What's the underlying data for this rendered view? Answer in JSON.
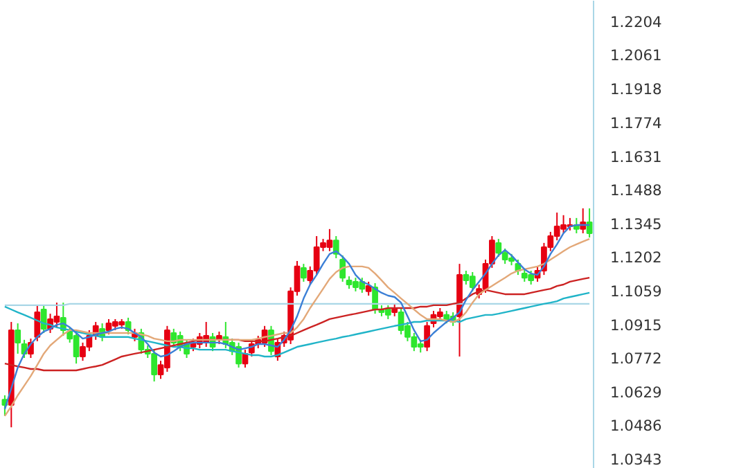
{
  "chart_data": [
    {
      "type": "candlestick",
      "categories": [
        null,
        null,
        null,
        null,
        null,
        null,
        null,
        null,
        null,
        null,
        null,
        null,
        null,
        null,
        null,
        null,
        null,
        null,
        null,
        null,
        null,
        null,
        null,
        null,
        null,
        null,
        null,
        null,
        null,
        null,
        null,
        null,
        null,
        null,
        null,
        null,
        null,
        null,
        null,
        null,
        null,
        null,
        null,
        null,
        null,
        null,
        null,
        null,
        null,
        null,
        null,
        null,
        null,
        null,
        null,
        null,
        null,
        null,
        null,
        null,
        null,
        null,
        null,
        null,
        null,
        null,
        null,
        null,
        null,
        null,
        null,
        null,
        null,
        null,
        null,
        null,
        null,
        null,
        null,
        null,
        null,
        null,
        null,
        null,
        null,
        null,
        null,
        null,
        null,
        null,
        null
      ],
      "ohlc": [
        [
          1.0596,
          1.0614,
          1.0526,
          1.0573
        ],
        [
          1.0573,
          1.0926,
          1.0478,
          1.0891
        ],
        [
          1.0891,
          1.092,
          1.0791,
          1.0838
        ],
        [
          1.0832,
          1.085,
          1.0773,
          1.0791
        ],
        [
          1.0791,
          1.0855,
          1.0773,
          1.0838
        ],
        [
          1.0862,
          1.0997,
          1.0844,
          1.0967
        ],
        [
          1.0979,
          1.0997,
          1.0879,
          1.0897
        ],
        [
          1.0897,
          1.0961,
          1.0879,
          1.0938
        ],
        [
          1.0926,
          1.1008,
          1.0903,
          1.095
        ],
        [
          1.0944,
          1.1008,
          1.0867,
          1.0891
        ],
        [
          1.0885,
          1.0903,
          1.0838,
          1.0855
        ],
        [
          1.0867,
          1.0879,
          1.0749,
          1.0779
        ],
        [
          1.0779,
          1.0838,
          1.0761,
          1.082
        ],
        [
          1.082,
          1.0891,
          1.0802,
          1.0867
        ],
        [
          1.0867,
          1.0926,
          1.085,
          1.0909
        ],
        [
          1.0897,
          1.092,
          1.0844,
          1.0862
        ],
        [
          1.0891,
          1.0938,
          1.0873,
          1.092
        ],
        [
          1.0909,
          1.0938,
          1.0891,
          1.0926
        ],
        [
          1.0914,
          1.0938,
          1.0897,
          1.0926
        ],
        [
          1.0926,
          1.0944,
          1.0873,
          1.0891
        ],
        [
          1.0862,
          1.0897,
          1.0844,
          1.0879
        ],
        [
          1.0879,
          1.0897,
          1.0791,
          1.0808
        ],
        [
          1.0808,
          1.0826,
          1.0773,
          1.0791
        ],
        [
          1.0791,
          1.0808,
          1.0673,
          1.0702
        ],
        [
          1.0702,
          1.0761,
          1.0684,
          1.0743
        ],
        [
          1.0732,
          1.0909,
          1.0714,
          1.0891
        ],
        [
          1.0879,
          1.0897,
          1.082,
          1.0838
        ],
        [
          1.0867,
          1.0885,
          1.0802,
          1.082
        ],
        [
          1.0832,
          1.085,
          1.0773,
          1.0791
        ],
        [
          1.082,
          1.0855,
          1.0802,
          1.0838
        ],
        [
          1.0832,
          1.0879,
          1.0814,
          1.0862
        ],
        [
          1.0838,
          1.0926,
          1.082,
          1.0867
        ],
        [
          1.0862,
          1.0879,
          1.0802,
          1.082
        ],
        [
          1.085,
          1.0885,
          1.0832,
          1.0867
        ],
        [
          1.0862,
          1.0926,
          1.0814,
          1.0832
        ],
        [
          1.0838,
          1.0855,
          1.0785,
          1.0802
        ],
        [
          1.082,
          1.0838,
          1.0732,
          1.0749
        ],
        [
          1.0749,
          1.0808,
          1.0732,
          1.0791
        ],
        [
          1.0796,
          1.085,
          1.0779,
          1.0832
        ],
        [
          1.0832,
          1.0867,
          1.0814,
          1.085
        ],
        [
          1.0838,
          1.0909,
          1.082,
          1.0891
        ],
        [
          1.0891,
          1.0909,
          1.0785,
          1.0802
        ],
        [
          1.0779,
          1.0855,
          1.0761,
          1.0838
        ],
        [
          1.0838,
          1.0885,
          1.082,
          1.0867
        ],
        [
          1.085,
          1.1073,
          1.0832,
          1.1056
        ],
        [
          1.1056,
          1.1185,
          1.1038,
          1.1162
        ],
        [
          1.1156,
          1.1173,
          1.1097,
          1.1114
        ],
        [
          1.1103,
          1.1162,
          1.1085,
          1.1144
        ],
        [
          1.1144,
          1.1291,
          1.1126,
          1.1244
        ],
        [
          1.1244,
          1.1279,
          1.1227,
          1.1262
        ],
        [
          1.1244,
          1.1321,
          1.1227,
          1.1273
        ],
        [
          1.1273,
          1.1291,
          1.1197,
          1.1215
        ],
        [
          1.1191,
          1.1209,
          1.1097,
          1.1114
        ],
        [
          1.1103,
          1.112,
          1.1067,
          1.1085
        ],
        [
          1.1097,
          1.1114,
          1.1056,
          1.1073
        ],
        [
          1.1097,
          1.1114,
          1.105,
          1.1067
        ],
        [
          1.1056,
          1.1097,
          1.1038,
          1.1079
        ],
        [
          1.1073,
          1.1091,
          1.0961,
          1.0979
        ],
        [
          1.0979,
          1.0997,
          1.095,
          1.0967
        ],
        [
          1.0979,
          1.0997,
          1.0938,
          1.0956
        ],
        [
          1.0967,
          1.1003,
          1.095,
          1.0985
        ],
        [
          1.0967,
          1.0985,
          1.0873,
          1.0891
        ],
        [
          1.0909,
          1.0926,
          1.0844,
          1.0862
        ],
        [
          1.0862,
          1.0879,
          1.0802,
          1.082
        ],
        [
          1.0832,
          1.085,
          1.0796,
          1.082
        ],
        [
          1.082,
          1.0926,
          1.0802,
          1.0909
        ],
        [
          1.092,
          1.0973,
          1.0903,
          1.0956
        ],
        [
          1.095,
          1.0985,
          1.0932,
          1.0967
        ],
        [
          1.0956,
          1.0973,
          1.092,
          1.0938
        ],
        [
          1.095,
          1.0967,
          1.0909,
          1.0926
        ],
        [
          1.095,
          1.1173,
          1.0779,
          1.1126
        ],
        [
          1.1126,
          1.1144,
          1.1085,
          1.1103
        ],
        [
          1.112,
          1.1138,
          1.1056,
          1.1073
        ],
        [
          1.1044,
          1.1085,
          1.1026,
          1.1067
        ],
        [
          1.1067,
          1.1191,
          1.105,
          1.1173
        ],
        [
          1.1173,
          1.1291,
          1.1156,
          1.1273
        ],
        [
          1.1262,
          1.1279,
          1.1203,
          1.122
        ],
        [
          1.122,
          1.1238,
          1.1173,
          1.1191
        ],
        [
          1.1197,
          1.1215,
          1.1167,
          1.1185
        ],
        [
          1.1173,
          1.1191,
          1.1126,
          1.1144
        ],
        [
          1.1132,
          1.115,
          1.1097,
          1.1114
        ],
        [
          1.1126,
          1.1144,
          1.1085,
          1.1103
        ],
        [
          1.1114,
          1.1162,
          1.1097,
          1.1144
        ],
        [
          1.1144,
          1.1262,
          1.1126,
          1.1244
        ],
        [
          1.1244,
          1.1309,
          1.1227,
          1.1291
        ],
        [
          1.1291,
          1.1391,
          1.1273,
          1.1332
        ],
        [
          1.1321,
          1.138,
          1.1303,
          1.1338
        ],
        [
          1.1332,
          1.1368,
          1.1315,
          1.1338
        ],
        [
          1.1338,
          1.1368,
          1.1303,
          1.1321
        ],
        [
          1.1321,
          1.1409,
          1.1303,
          1.135
        ],
        [
          1.135,
          1.1409,
          1.1285,
          1.1303
        ]
      ],
      "colors": [
        "#2ee62e",
        "#e60012",
        "#2ee62e",
        "#2ee62e",
        "#e60012",
        "#e60012",
        "#2ee62e",
        "#e60012",
        "#e60012",
        "#2ee62e",
        "#2ee62e",
        "#2ee62e",
        "#e60012",
        "#e60012",
        "#e60012",
        "#2ee62e",
        "#e60012",
        "#e60012",
        "#e60012",
        "#2ee62e",
        "#e60012",
        "#2ee62e",
        "#2ee62e",
        "#2ee62e",
        "#e60012",
        "#e60012",
        "#2ee62e",
        "#2ee62e",
        "#2ee62e",
        "#e60012",
        "#e60012",
        "#e60012",
        "#2ee62e",
        "#e60012",
        "#2ee62e",
        "#2ee62e",
        "#2ee62e",
        "#e60012",
        "#e60012",
        "#e60012",
        "#e60012",
        "#2ee62e",
        "#e60012",
        "#e60012",
        "#e60012",
        "#e60012",
        "#2ee62e",
        "#e60012",
        "#e60012",
        "#e60012",
        "#e60012",
        "#2ee62e",
        "#2ee62e",
        "#2ee62e",
        "#2ee62e",
        "#2ee62e",
        "#e60012",
        "#2ee62e",
        "#2ee62e",
        "#2ee62e",
        "#e60012",
        "#2ee62e",
        "#2ee62e",
        "#2ee62e",
        "#2ee62e",
        "#e60012",
        "#e60012",
        "#e60012",
        "#2ee62e",
        "#2ee62e",
        "#e60012",
        "#2ee62e",
        "#2ee62e",
        "#e60012",
        "#e60012",
        "#e60012",
        "#2ee62e",
        "#2ee62e",
        "#2ee62e",
        "#2ee62e",
        "#2ee62e",
        "#2ee62e",
        "#e60012",
        "#e60012",
        "#e60012",
        "#e60012",
        "#e60012",
        "#e60012",
        "#2ee62e",
        "#e60012",
        "#2ee62e"
      ],
      "ylim": [
        1.0302,
        1.2292
      ],
      "yticks": [
        1.0343,
        1.0486,
        1.0629,
        1.0772,
        1.0915,
        1.1059,
        1.1202,
        1.1345,
        1.1488,
        1.1631,
        1.1774,
        1.1918,
        1.2061,
        1.2204
      ],
      "tick_labels": "y"
    },
    {
      "type": "line",
      "categories": [
        null,
        null,
        null,
        null,
        null,
        null,
        null,
        null,
        null,
        null,
        null,
        null,
        null,
        null,
        null,
        null,
        null,
        null,
        null,
        null,
        null,
        null,
        null,
        null,
        null,
        null,
        null,
        null,
        null,
        null,
        null,
        null,
        null,
        null,
        null,
        null,
        null,
        null,
        null,
        null,
        null,
        null,
        null,
        null,
        null,
        null,
        null,
        null,
        null,
        null,
        null,
        null,
        null,
        null,
        null,
        null,
        null,
        null,
        null,
        null,
        null,
        null,
        null,
        null,
        null,
        null,
        null,
        null,
        null,
        null,
        null,
        null,
        null,
        null,
        null,
        null,
        null,
        null,
        null,
        null,
        null,
        null,
        null,
        null,
        null,
        null,
        null,
        null,
        null,
        null,
        null
      ],
      "series": [
        {
          "type": "line",
          "color": "#a9d6e6",
          "values": [
            1.0997,
            1.0997,
            1.0997,
            1.0997,
            1.0997,
            1.0997,
            1.0997,
            1.0997,
            1.0997,
            1.0997,
            1.1003,
            1.1003,
            1.1003,
            1.1003,
            1.1003,
            1.1003,
            1.1003,
            1.1003,
            1.1003,
            1.1003,
            1.1003,
            1.1003,
            1.1003,
            1.1003,
            1.1003,
            1.1003,
            1.1003,
            1.1003,
            1.1003,
            1.1003,
            1.1003,
            1.1003,
            1.1003,
            1.1003,
            1.1003,
            1.1003,
            1.1003,
            1.1003,
            1.1003,
            1.1003,
            1.1003,
            1.1003,
            1.1003,
            1.1003,
            1.1003,
            1.1003,
            1.1003,
            1.1003,
            1.1003,
            1.1003,
            1.1003,
            1.1003,
            1.1003,
            1.1003,
            1.1003,
            1.1003,
            1.1003,
            1.1003,
            1.1003,
            1.1003,
            1.1003,
            1.1003,
            1.1003,
            1.1003,
            1.1003,
            1.1003,
            1.1003,
            1.1003,
            1.1003,
            1.1003,
            1.1003,
            1.1003,
            1.1003,
            1.1003,
            1.1003,
            1.1003,
            1.1003,
            1.1003,
            1.1003,
            1.1003,
            1.1003,
            1.1003,
            1.1003,
            1.1003,
            1.1003,
            1.1003,
            1.1003,
            1.1003,
            1.1003,
            1.1003,
            1.1003
          ]
        },
        {
          "type": "line",
          "color": "#20b4c8",
          "values": [
            1.0991,
            1.0979,
            1.0967,
            1.0956,
            1.0944,
            1.0932,
            1.092,
            1.0914,
            1.0903,
            1.0897,
            1.0891,
            1.0885,
            1.0879,
            1.0873,
            1.0867,
            1.0862,
            1.0862,
            1.0862,
            1.0862,
            1.0862,
            1.0855,
            1.085,
            1.0844,
            1.0838,
            1.0832,
            1.0826,
            1.082,
            1.082,
            1.0814,
            1.0814,
            1.0808,
            1.0808,
            1.0808,
            1.0808,
            1.0808,
            1.0802,
            1.0796,
            1.0791,
            1.0785,
            1.0785,
            1.0779,
            1.0779,
            1.0785,
            1.0796,
            1.0808,
            1.082,
            1.0826,
            1.0832,
            1.0838,
            1.0844,
            1.085,
            1.0855,
            1.0862,
            1.0867,
            1.0873,
            1.0879,
            1.0885,
            1.0891,
            1.0897,
            1.0903,
            1.0909,
            1.0914,
            1.092,
            1.0926,
            1.0926,
            1.0932,
            1.0932,
            1.0932,
            1.0932,
            1.0932,
            1.0926,
            1.0938,
            1.0944,
            1.095,
            1.0956,
            1.0956,
            1.0961,
            1.0967,
            1.0973,
            1.0979,
            1.0985,
            1.0991,
            1.0997,
            1.1003,
            1.1008,
            1.1014,
            1.1026,
            1.1032,
            1.1038,
            1.1044,
            1.105
          ]
        },
        {
          "type": "line",
          "color": "#cc2222",
          "values": [
            1.0749,
            1.0743,
            1.0737,
            1.0732,
            1.0726,
            1.0726,
            1.072,
            1.072,
            1.072,
            1.072,
            1.072,
            1.072,
            1.0726,
            1.0732,
            1.0737,
            1.0743,
            1.0755,
            1.0767,
            1.0779,
            1.0785,
            1.0791,
            1.0796,
            1.0802,
            1.0808,
            1.0814,
            1.082,
            1.0826,
            1.0832,
            1.0838,
            1.0844,
            1.085,
            1.085,
            1.085,
            1.085,
            1.085,
            1.085,
            1.085,
            1.0844,
            1.0844,
            1.0844,
            1.0844,
            1.085,
            1.0855,
            1.0862,
            1.0867,
            1.0879,
            1.0891,
            1.0903,
            1.0914,
            1.0926,
            1.0938,
            1.0944,
            1.095,
            1.0956,
            1.0961,
            1.0967,
            1.0973,
            1.0979,
            1.0979,
            1.0985,
            1.0985,
            1.0985,
            1.0985,
            1.0985,
            1.0991,
            1.0991,
            1.0997,
            1.0997,
            1.0997,
            1.1003,
            1.1008,
            1.1026,
            1.1044,
            1.1056,
            1.1062,
            1.1056,
            1.105,
            1.1044,
            1.1044,
            1.1044,
            1.1044,
            1.105,
            1.1056,
            1.1062,
            1.1067,
            1.1079,
            1.1085,
            1.1097,
            1.1103,
            1.1109,
            1.1114
          ]
        },
        {
          "type": "line",
          "color": "#e3a878",
          "values": [
            1.0526,
            1.0567,
            1.0614,
            1.0655,
            1.0696,
            1.0743,
            1.0791,
            1.0826,
            1.085,
            1.0873,
            1.0891,
            1.0891,
            1.0885,
            1.0879,
            1.0879,
            1.0879,
            1.0879,
            1.0879,
            1.0879,
            1.0879,
            1.0879,
            1.0873,
            1.0867,
            1.0855,
            1.085,
            1.0844,
            1.0844,
            1.085,
            1.085,
            1.085,
            1.085,
            1.085,
            1.085,
            1.085,
            1.085,
            1.085,
            1.085,
            1.085,
            1.085,
            1.0855,
            1.0862,
            1.0867,
            1.0873,
            1.0879,
            1.0879,
            1.0903,
            1.0938,
            1.0985,
            1.1026,
            1.1067,
            1.1109,
            1.1138,
            1.1156,
            1.1162,
            1.1162,
            1.1162,
            1.1156,
            1.1132,
            1.1103,
            1.1073,
            1.105,
            1.1026,
            1.1003,
            1.0979,
            1.0956,
            1.0938,
            1.0938,
            1.0938,
            1.0932,
            1.0926,
            1.0938,
            1.0967,
            1.1008,
            1.1044,
            1.1062,
            1.1079,
            1.1097,
            1.1114,
            1.1132,
            1.1144,
            1.115,
            1.1156,
            1.1162,
            1.1173,
            1.1191,
            1.1209,
            1.1227,
            1.1244,
            1.1256,
            1.1268,
            1.1279
          ]
        },
        {
          "type": "line",
          "color": "#3b7fd6",
          "values": [
            1.0555,
            1.0643,
            1.0732,
            1.0791,
            1.0832,
            1.0862,
            1.0885,
            1.0897,
            1.0914,
            1.092,
            1.0903,
            1.0879,
            1.0855,
            1.0862,
            1.0873,
            1.0879,
            1.0885,
            1.0897,
            1.0903,
            1.0897,
            1.0879,
            1.0862,
            1.0832,
            1.0796,
            1.0779,
            1.0785,
            1.0802,
            1.082,
            1.0832,
            1.0838,
            1.0838,
            1.0838,
            1.0838,
            1.0838,
            1.0832,
            1.082,
            1.0808,
            1.0814,
            1.082,
            1.0832,
            1.0832,
            1.0826,
            1.082,
            1.085,
            1.0891,
            1.095,
            1.1026,
            1.1085,
            1.1126,
            1.1173,
            1.1215,
            1.1227,
            1.1203,
            1.1173,
            1.1126,
            1.1097,
            1.1085,
            1.1067,
            1.105,
            1.1038,
            1.1032,
            1.1008,
            1.095,
            1.0891,
            1.0844,
            1.085,
            1.0879,
            1.0903,
            1.0926,
            1.0944,
            1.0967,
            1.102,
            1.1062,
            1.1097,
            1.1132,
            1.1173,
            1.1209,
            1.1232,
            1.1209,
            1.1179,
            1.115,
            1.1132,
            1.1126,
            1.1162,
            1.1215,
            1.1256,
            1.1303,
            1.1332,
            1.1338,
            1.1338,
            1.1338
          ]
        }
      ],
      "ylim": [
        1.0302,
        1.2292
      ],
      "yticks": [
        1.0343,
        1.0486,
        1.0629,
        1.0772,
        1.0915,
        1.1059,
        1.1202,
        1.1345,
        1.1488,
        1.1631,
        1.1774,
        1.1918,
        1.2061,
        1.2204
      ],
      "tick_labels": false
    }
  ]
}
